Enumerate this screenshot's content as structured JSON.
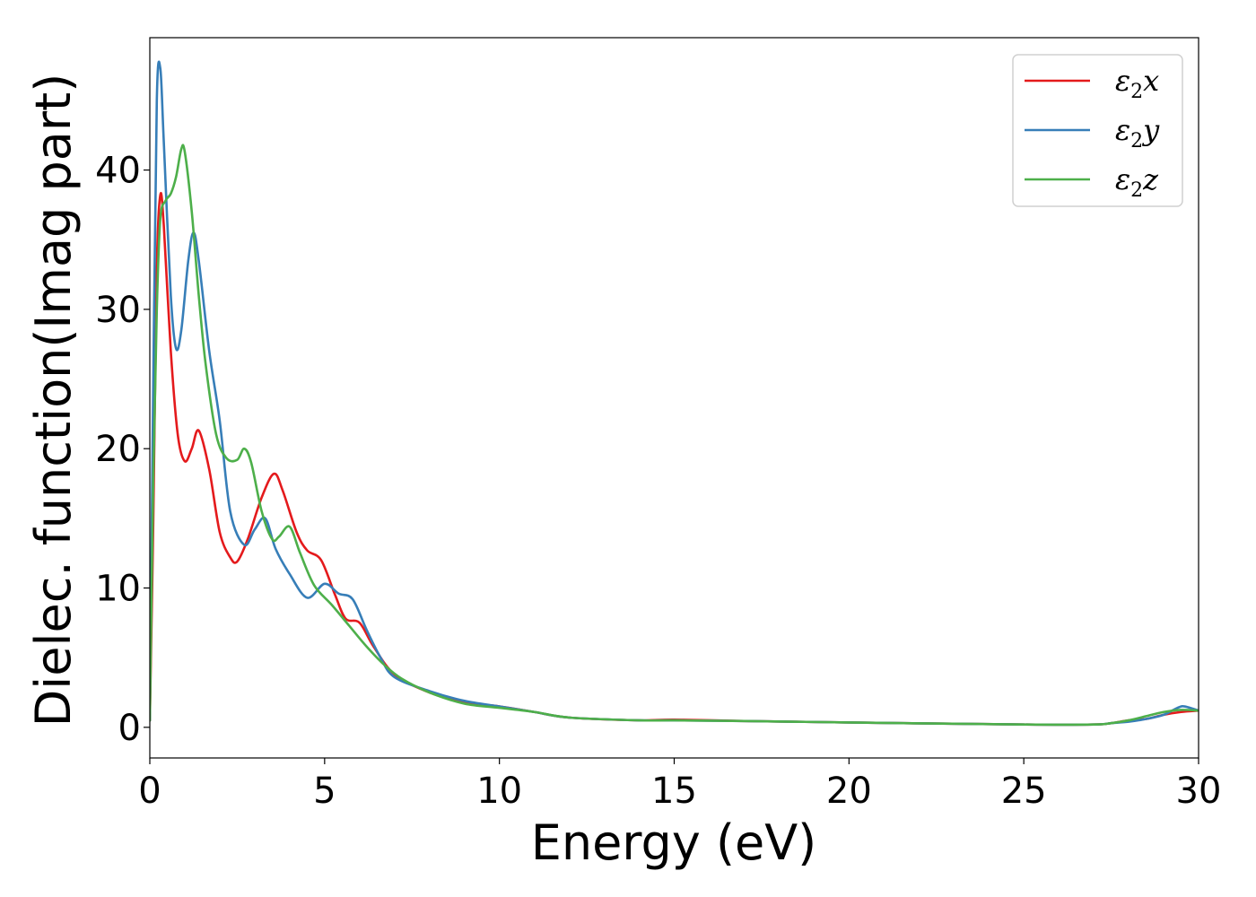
{
  "chart_data": {
    "type": "line",
    "title": "",
    "xlabel": "Energy (eV)",
    "ylabel": "Dielec. function(Imag part)",
    "xlim": [
      0,
      30
    ],
    "ylim": [
      -2.2,
      49.5
    ],
    "xticks": [
      0,
      5,
      10,
      15,
      20,
      25,
      30
    ],
    "xtick_labels": [
      "0",
      "5",
      "10",
      "15",
      "20",
      "25",
      "30"
    ],
    "yticks": [
      0,
      10,
      20,
      30,
      40
    ],
    "ytick_labels": [
      "0",
      "10",
      "20",
      "30",
      "40"
    ],
    "grid": false,
    "legend_position": "top-right",
    "series": [
      {
        "name": "ε₂x",
        "legend_base": "ε",
        "legend_sub": "2",
        "legend_suffix": "x",
        "color": "#e41a1c",
        "x": [
          0,
          0.1,
          0.2,
          0.3,
          0.4,
          0.6,
          0.8,
          1.0,
          1.2,
          1.4,
          1.7,
          2.0,
          2.3,
          2.5,
          2.8,
          3.2,
          3.55,
          3.8,
          4.2,
          4.5,
          4.9,
          5.3,
          5.6,
          6.0,
          6.4,
          7.0,
          8.0,
          9.0,
          10.0,
          11.0,
          12.0,
          14.0,
          15.0,
          17.0,
          20.0,
          25.0,
          27.0,
          27.5,
          28.0,
          28.5,
          29.0,
          29.5,
          30.0
        ],
        "y": [
          0.5,
          15,
          33,
          38.2,
          36,
          27,
          21,
          19.1,
          20,
          21.3,
          18.5,
          14,
          12.2,
          11.9,
          13.5,
          16.5,
          18.2,
          17,
          14,
          12.7,
          12,
          9.5,
          7.8,
          7.5,
          5.8,
          3.8,
          2.5,
          1.8,
          1.5,
          1.1,
          0.7,
          0.5,
          0.55,
          0.45,
          0.35,
          0.2,
          0.2,
          0.3,
          0.5,
          0.6,
          0.9,
          1.1,
          1.2
        ]
      },
      {
        "name": "ε₂y",
        "legend_base": "ε",
        "legend_sub": "2",
        "legend_suffix": "y",
        "color": "#377eb8",
        "x": [
          0,
          0.1,
          0.2,
          0.3,
          0.4,
          0.6,
          0.75,
          0.9,
          1.1,
          1.25,
          1.4,
          1.7,
          2.0,
          2.3,
          2.7,
          3.0,
          3.3,
          3.6,
          4.0,
          4.5,
          5.0,
          5.4,
          5.8,
          6.2,
          6.6,
          7.0,
          8.0,
          9.0,
          10.0,
          11.0,
          12.0,
          14.0,
          15.0,
          17.0,
          20.0,
          25.0,
          27.0,
          27.5,
          28.0,
          28.5,
          29.0,
          29.4,
          29.6,
          30.0
        ],
        "y": [
          0.5,
          25,
          45,
          47.3,
          42,
          31,
          27.2,
          28.5,
          33.5,
          35.5,
          33.5,
          27,
          22,
          15.5,
          13.1,
          14.2,
          15,
          12.8,
          11,
          9.3,
          10.3,
          9.6,
          9.2,
          7,
          5,
          3.6,
          2.6,
          1.9,
          1.5,
          1.1,
          0.7,
          0.5,
          0.5,
          0.45,
          0.35,
          0.2,
          0.2,
          0.3,
          0.4,
          0.6,
          0.9,
          1.4,
          1.5,
          1.2
        ]
      },
      {
        "name": "ε₂z",
        "legend_base": "ε",
        "legend_sub": "2",
        "legend_suffix": "z",
        "color": "#4daf4a",
        "x": [
          0,
          0.1,
          0.2,
          0.3,
          0.45,
          0.6,
          0.75,
          0.9,
          1.0,
          1.2,
          1.4,
          1.6,
          1.9,
          2.2,
          2.5,
          2.7,
          2.9,
          3.2,
          3.5,
          3.7,
          4.0,
          4.3,
          4.7,
          5.2,
          5.7,
          6.2,
          6.7,
          7.2,
          8.0,
          9.0,
          10.0,
          11.0,
          12.0,
          14.0,
          15.0,
          17.0,
          20.0,
          25.0,
          27.0,
          27.5,
          28.0,
          28.5,
          29.0,
          29.5,
          30.0
        ],
        "y": [
          0.5,
          18,
          30,
          36.5,
          37.8,
          38.3,
          39.5,
          41.5,
          41.3,
          37,
          31,
          26,
          21,
          19.3,
          19.2,
          20,
          19,
          15.5,
          13.5,
          13.7,
          14.4,
          12.5,
          10.2,
          8.8,
          7.3,
          5.8,
          4.5,
          3.5,
          2.5,
          1.7,
          1.4,
          1.1,
          0.7,
          0.5,
          0.5,
          0.45,
          0.35,
          0.2,
          0.2,
          0.3,
          0.5,
          0.8,
          1.1,
          1.25,
          1.2
        ]
      }
    ]
  }
}
